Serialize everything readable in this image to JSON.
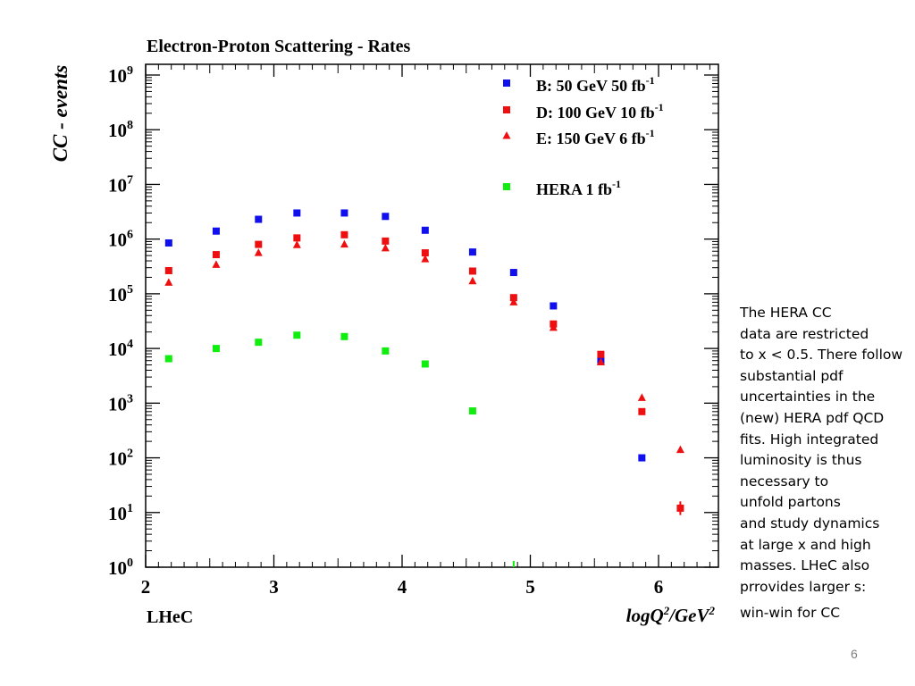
{
  "slide": {
    "note_lines": [
      "The HERA CC",
      "data are restricted",
      "to x < 0.5. There follow",
      "substantial pdf",
      "uncertainties in the",
      "(new) HERA pdf QCD",
      "fits. High integrated",
      "luminosity is thus",
      "necessary to",
      "unfold partons",
      "and study dynamics",
      "at large x and high",
      "masses. LHeC also",
      "prrovides larger s:",
      "win-win for CC"
    ],
    "page_number": "6"
  },
  "chart_data": {
    "type": "scatter",
    "title": "Electron-Proton Scattering - Rates",
    "ylabel": "CC - events",
    "xlabel": "logQ²/GeV²",
    "corner_label": "LHeC",
    "xlim": [
      2,
      6.5
    ],
    "ylim": [
      1,
      1000000000
    ],
    "y_scale": "log",
    "x_ticks": [
      2,
      3,
      4,
      5,
      6
    ],
    "x_tick_labels": [
      "2",
      "3",
      "4",
      "5",
      "6"
    ],
    "y_tick_labels": [
      {
        "base": "10",
        "exp": "0"
      },
      {
        "base": "10",
        "exp": "1"
      },
      {
        "base": "10",
        "exp": "2"
      },
      {
        "base": "10",
        "exp": "3"
      },
      {
        "base": "10",
        "exp": "4"
      },
      {
        "base": "10",
        "exp": "5"
      },
      {
        "base": "10",
        "exp": "6"
      },
      {
        "base": "10",
        "exp": "7"
      },
      {
        "base": "10",
        "exp": "8"
      },
      {
        "base": "10",
        "exp": "9"
      }
    ],
    "grid": false,
    "legend_position": "top-right",
    "series": [
      {
        "name": "B: 50 GeV 50 fb",
        "name_sup": "-1",
        "color": "#1010ee",
        "marker": "square",
        "x": [
          2.18,
          2.55,
          2.88,
          3.18,
          3.55,
          3.87,
          4.18,
          4.55,
          4.87,
          5.18,
          5.55,
          5.87
        ],
        "y": [
          850000,
          1400000,
          2300000,
          3000000,
          3000000,
          2600000,
          1450000,
          580000,
          245000,
          60000,
          6000,
          100
        ]
      },
      {
        "name": "D: 100 GeV 10 fb",
        "name_sup": "-1",
        "color": "#ee1010",
        "marker": "square",
        "x": [
          2.18,
          2.55,
          2.88,
          3.18,
          3.55,
          3.87,
          4.18,
          4.55,
          4.87,
          5.18,
          5.55,
          5.87,
          6.17
        ],
        "y": [
          265000,
          520000,
          800000,
          1050000,
          1200000,
          920000,
          560000,
          260000,
          85000,
          28000,
          7800,
          700,
          12
        ]
      },
      {
        "name": "E: 150 GeV 6 fb",
        "name_sup": "-1",
        "color": "#ee1010",
        "marker": "triangle",
        "x": [
          2.18,
          2.55,
          2.88,
          3.18,
          3.55,
          3.87,
          4.18,
          4.55,
          4.87,
          5.18,
          5.55,
          5.87,
          6.17
        ],
        "y": [
          160000,
          340000,
          560000,
          780000,
          800000,
          680000,
          430000,
          170000,
          70000,
          24000,
          5600,
          1250,
          140
        ]
      },
      {
        "name": "HERA  1 fb",
        "name_sup": "-1",
        "color": "#10ee10",
        "marker": "square",
        "x": [
          2.18,
          2.55,
          2.88,
          3.18,
          3.55,
          3.87,
          4.18,
          4.55,
          4.87
        ],
        "y": [
          6500,
          10000,
          13000,
          17500,
          16500,
          9000,
          5200,
          720,
          1
        ]
      }
    ]
  }
}
